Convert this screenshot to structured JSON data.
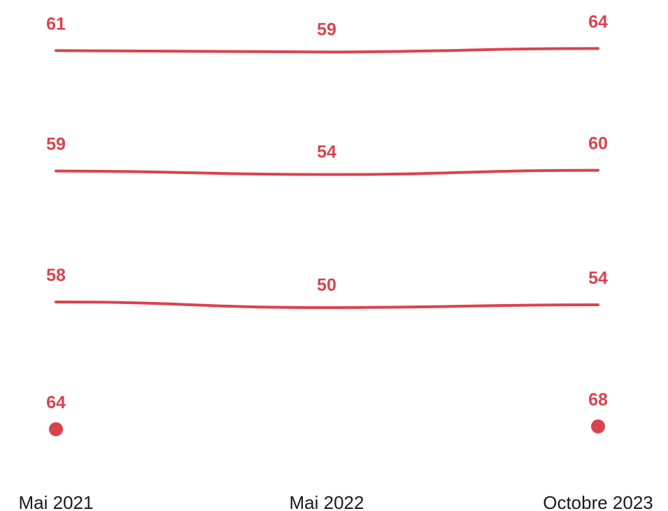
{
  "chart_data": {
    "type": "line",
    "title": "",
    "xlabel": "",
    "ylabel": "",
    "categories": [
      "Mai 2021",
      "Mai 2022",
      "Octobre 2023"
    ],
    "series": [
      {
        "values": [
          61,
          59,
          64
        ]
      },
      {
        "values": [
          59,
          54,
          60
        ]
      },
      {
        "values": [
          58,
          50,
          54
        ]
      },
      {
        "values": [
          64,
          null,
          68
        ]
      }
    ],
    "grid": false,
    "legend": "none",
    "colors": {
      "series": "#d9434e",
      "axis_text": "#1a1a1a",
      "background": "#ffffff"
    }
  }
}
